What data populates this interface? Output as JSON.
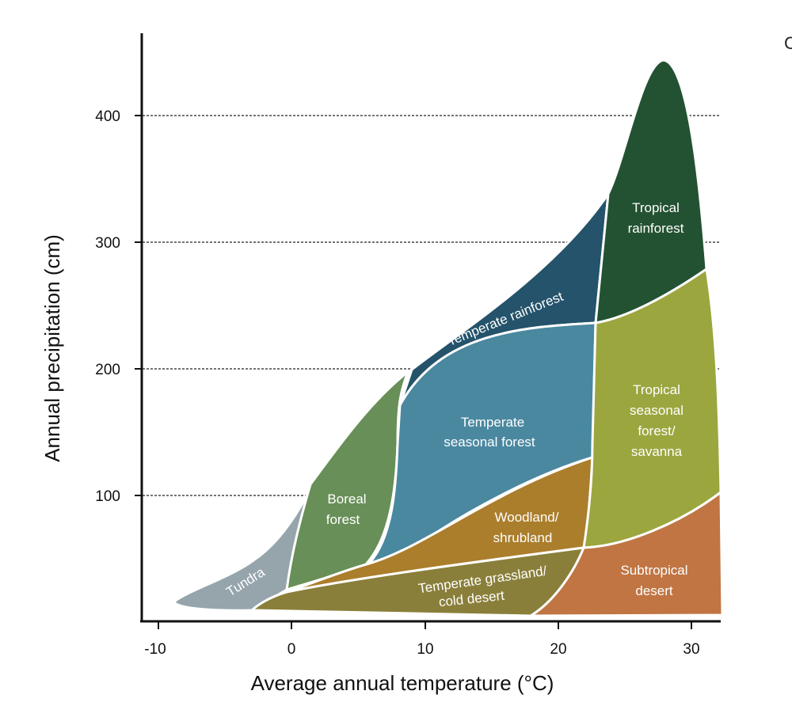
{
  "chart_data": {
    "type": "area",
    "title": "",
    "xlabel": "Average annual temperature (°C)",
    "ylabel": "Annual precipitation (cm)",
    "xlim": [
      -11,
      32
    ],
    "ylim": [
      0,
      450
    ],
    "xticks": [
      "-10",
      "0",
      "10",
      "20",
      "30"
    ],
    "yticks": [
      "100",
      "200",
      "300",
      "400"
    ],
    "grid": "horizontal dashed at 100, 200, 300, 400",
    "regions": [
      {
        "name": "Tundra",
        "label": "Tundra",
        "temp_range": [
          -10,
          1
        ],
        "precip_range": [
          10,
          100
        ],
        "color": "#95a5ab"
      },
      {
        "name": "Boreal forest",
        "label": [
          "Boreal",
          "forest"
        ],
        "temp_range": [
          0,
          8
        ],
        "precip_range": [
          25,
          200
        ],
        "color": "#688f57"
      },
      {
        "name": "Temperate rainforest",
        "label": "Temperate rainforest",
        "temp_range": [
          8,
          24
        ],
        "precip_range": [
          170,
          340
        ],
        "color": "#24536b"
      },
      {
        "name": "Temperate seasonal forest",
        "label": [
          "Temperate",
          "seasonal forest"
        ],
        "temp_range": [
          6,
          23
        ],
        "precip_range": [
          45,
          240
        ],
        "color": "#4a88a0"
      },
      {
        "name": "Woodland/shrubland",
        "label": [
          "Woodland/",
          "shrubland"
        ],
        "temp_range": [
          0,
          23
        ],
        "precip_range": [
          25,
          130
        ],
        "color": "#ab7e2c"
      },
      {
        "name": "Temperate grassland/cold desert",
        "label": [
          "Temperate grassland/",
          "cold desert"
        ],
        "temp_range": [
          -3,
          22
        ],
        "precip_range": [
          5,
          60
        ],
        "color": "#8a7f3a"
      },
      {
        "name": "Tropical rainforest",
        "label": [
          "Tropical",
          "rainforest"
        ],
        "temp_range": [
          23,
          31
        ],
        "precip_range": [
          235,
          445
        ],
        "color": "#235232"
      },
      {
        "name": "Tropical seasonal forest/savanna",
        "label": [
          "Tropical",
          "seasonal",
          "forest/",
          "savanna"
        ],
        "temp_range": [
          22,
          32
        ],
        "precip_range": [
          55,
          280
        ],
        "color": "#9ba63f"
      },
      {
        "name": "Subtropical desert",
        "label": [
          "Subtropical",
          "desert"
        ],
        "temp_range": [
          18,
          32
        ],
        "precip_range": [
          5,
          100
        ],
        "color": "#c07543"
      }
    ]
  },
  "corner_fragment": "C"
}
